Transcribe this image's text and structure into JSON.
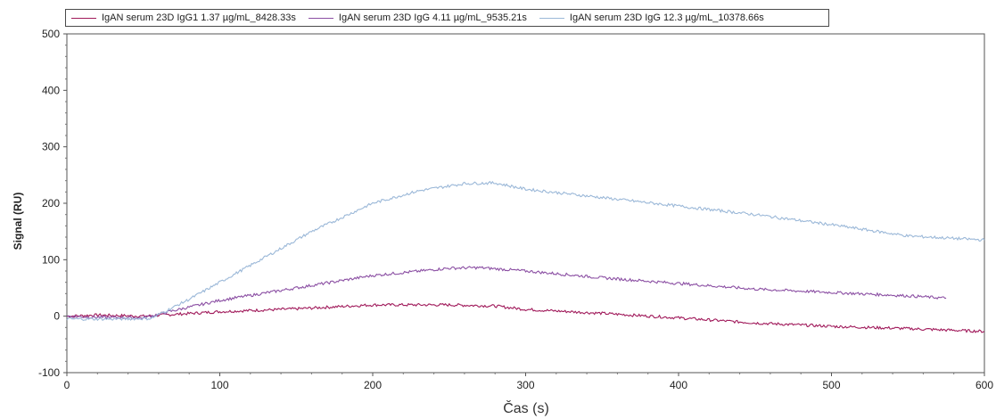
{
  "chart_data": {
    "type": "line",
    "xlabel": "Čas (s)",
    "ylabel": "Signal (RU)",
    "xlim": [
      0,
      600
    ],
    "ylim": [
      -100,
      500
    ],
    "xticks": [
      0,
      100,
      200,
      300,
      400,
      500,
      600
    ],
    "yticks": [
      -100,
      0,
      100,
      200,
      300,
      400,
      500
    ],
    "legend_position": "top",
    "grid": false,
    "series": [
      {
        "name": "IgAN serum 23D IgG1 1.37 µg/mL_8428.33s",
        "color": "#a0195a",
        "x": [
          0,
          20,
          50,
          100,
          150,
          200,
          250,
          280,
          300,
          350,
          400,
          450,
          500,
          550,
          600
        ],
        "y": [
          0,
          2,
          0,
          8,
          13,
          20,
          20,
          18,
          12,
          5,
          -3,
          -12,
          -18,
          -22,
          -27
        ]
      },
      {
        "name": "IgAN serum 23D IgG 4.11 µg/mL_9535.21s",
        "color": "#8b4fa3",
        "x": [
          0,
          20,
          50,
          70,
          100,
          150,
          200,
          250,
          270,
          300,
          350,
          400,
          450,
          500,
          550,
          575
        ],
        "y": [
          0,
          -2,
          -3,
          10,
          28,
          50,
          72,
          85,
          86,
          80,
          68,
          58,
          48,
          42,
          36,
          32
        ]
      },
      {
        "name": "IgAN serum 23D IgG 12.3 µg/mL_10378.66s",
        "color": "#9bb8d8",
        "x": [
          0,
          30,
          55,
          80,
          100,
          130,
          160,
          200,
          230,
          260,
          280,
          300,
          350,
          400,
          450,
          500,
          550,
          600
        ],
        "y": [
          -5,
          -5,
          -4,
          30,
          60,
          105,
          150,
          200,
          222,
          235,
          236,
          225,
          210,
          195,
          180,
          162,
          142,
          135
        ]
      }
    ]
  }
}
